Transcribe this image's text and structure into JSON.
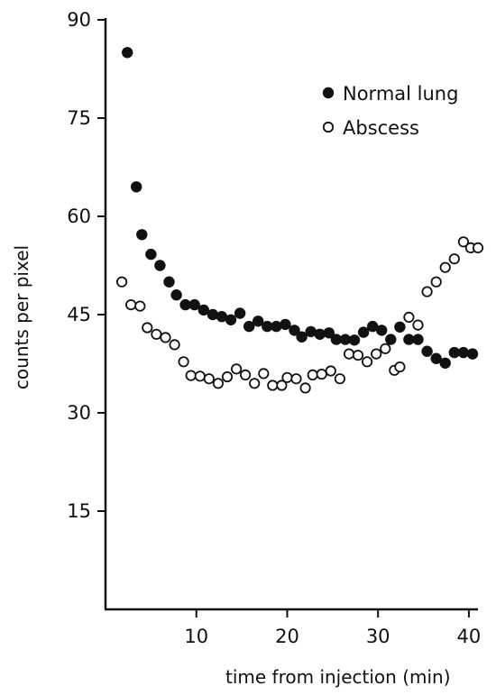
{
  "chart_data": {
    "type": "scatter",
    "title": "",
    "xlabel": "time from injection (min)",
    "ylabel": "counts per pixel",
    "xlim": [
      0,
      41
    ],
    "ylim": [
      0,
      90
    ],
    "x_ticks": [
      10,
      20,
      30,
      40
    ],
    "y_ticks": [
      15,
      30,
      45,
      60,
      75,
      90
    ],
    "grid": false,
    "legend_position": "top-right",
    "series": [
      {
        "name": "Normal lung",
        "marker": "filled-circle",
        "color": "#111111",
        "x": [
          2.4,
          3.4,
          4.0,
          5.0,
          6.0,
          7.0,
          7.8,
          8.8,
          9.8,
          10.8,
          11.8,
          12.8,
          13.8,
          14.8,
          15.8,
          16.8,
          17.8,
          18.8,
          19.8,
          20.8,
          21.6,
          22.6,
          23.6,
          24.6,
          25.4,
          26.4,
          27.4,
          28.4,
          29.4,
          30.4,
          31.4,
          32.4,
          33.4,
          34.4,
          35.4,
          36.4,
          37.4,
          38.4,
          39.4,
          40.4
        ],
        "y": [
          85,
          64.5,
          57.2,
          54.2,
          52.5,
          50,
          48,
          46.5,
          46.5,
          45.7,
          45,
          44.7,
          44.2,
          45.2,
          43.2,
          44,
          43.2,
          43.2,
          43.5,
          42.6,
          41.6,
          42.4,
          42,
          42.2,
          41.2,
          41.2,
          41.1,
          42.3,
          43.2,
          42.6,
          41.2,
          43.1,
          41.2,
          41.2,
          39.4,
          38.3,
          37.6,
          39.2,
          39.2,
          39
        ]
      },
      {
        "name": "Abscess",
        "marker": "open-circle",
        "color": "#111111",
        "x": [
          1.8,
          2.8,
          3.8,
          4.6,
          5.6,
          6.6,
          7.6,
          8.6,
          9.4,
          10.4,
          11.4,
          12.4,
          13.4,
          14.4,
          15.4,
          16.4,
          17.4,
          18.4,
          19.4,
          20.0,
          21.0,
          22.0,
          22.8,
          23.8,
          24.8,
          25.8,
          26.8,
          27.8,
          28.8,
          29.8,
          30.8,
          31.8,
          32.4,
          33.4,
          34.4,
          35.4,
          36.4,
          37.4,
          38.4,
          39.4,
          40.2,
          41.0
        ],
        "y": [
          50,
          46.5,
          46.3,
          43,
          42,
          41.5,
          40.4,
          37.8,
          35.7,
          35.6,
          35.2,
          34.5,
          35.5,
          36.7,
          35.8,
          34.5,
          36,
          34.2,
          34.2,
          35.4,
          35.2,
          33.8,
          35.8,
          35.9,
          36.4,
          35.2,
          39,
          38.8,
          37.8,
          39,
          39.8,
          36.5,
          37,
          44.6,
          43.4,
          48.5,
          50,
          52.2,
          53.5,
          56.1,
          55.2,
          55.2
        ]
      }
    ]
  }
}
